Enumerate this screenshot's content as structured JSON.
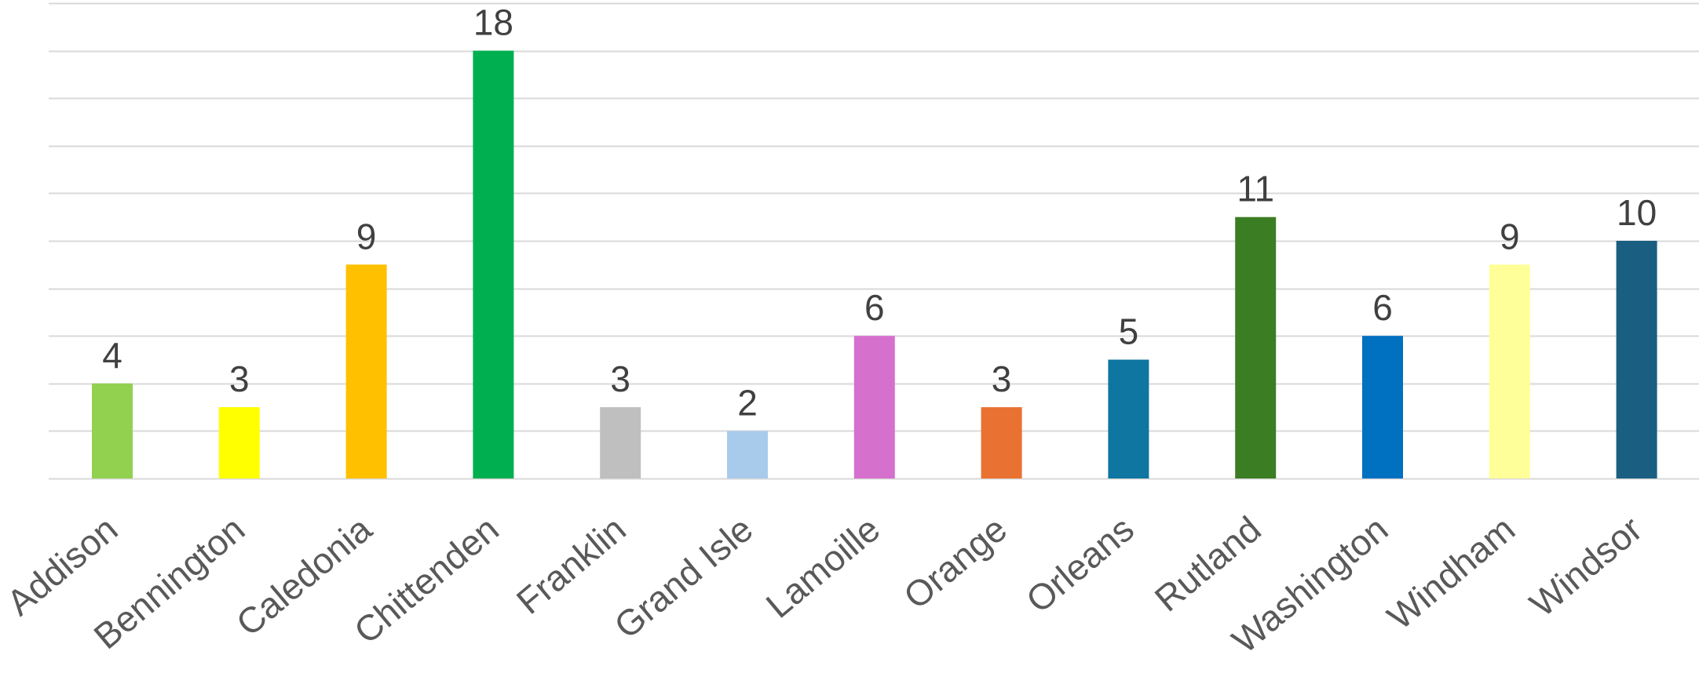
{
  "chart_data": {
    "type": "bar",
    "categories": [
      "Addison",
      "Bennington",
      "Caledonia",
      "Chittenden",
      "Franklin",
      "Grand Isle",
      "Lamoille",
      "Orange",
      "Orleans",
      "Rutland",
      "Washington",
      "Windham",
      "Windsor"
    ],
    "values": [
      4,
      3,
      9,
      18,
      3,
      2,
      6,
      3,
      5,
      11,
      6,
      9,
      10
    ],
    "colors": [
      "#92d050",
      "#ffff00",
      "#ffc000",
      "#00b050",
      "#bfbfbf",
      "#a9cbeb",
      "#d670cd",
      "#e97132",
      "#0e76a0",
      "#3b7d23",
      "#0070c0",
      "#ffff99",
      "#1a5f82"
    ],
    "title": "",
    "xlabel": "",
    "ylabel": "",
    "ylim": [
      0,
      20
    ],
    "grid": true,
    "y_gridline_step": 2,
    "y_tick_labels_shown": false,
    "data_labels_shown": true,
    "legend": "none"
  }
}
